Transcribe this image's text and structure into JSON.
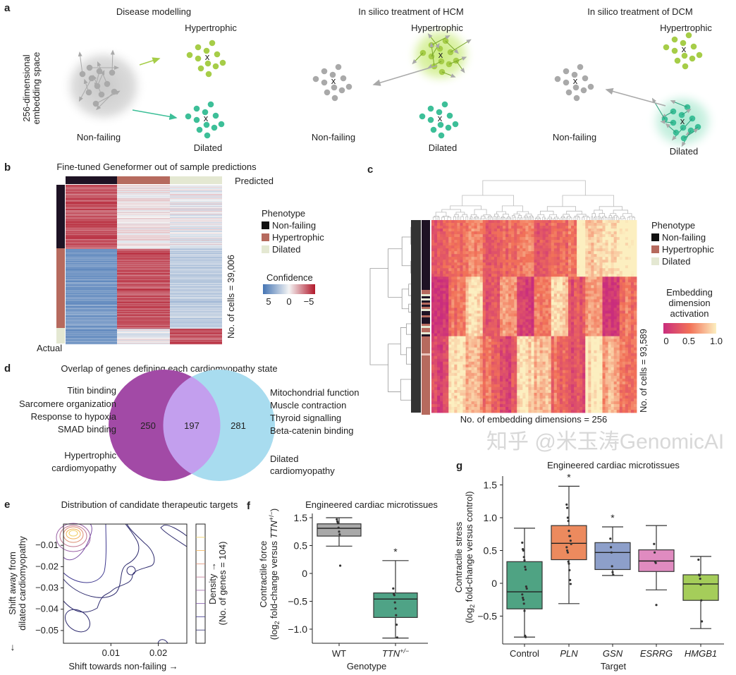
{
  "panel_labels": {
    "a": "a",
    "b": "b",
    "c": "c",
    "d": "d",
    "e": "e",
    "f": "f",
    "g": "g"
  },
  "a": {
    "titles": [
      "Disease modelling",
      "In silico treatment of HCM",
      "In silico treatment of DCM"
    ],
    "axis_label": [
      "256-dimensional",
      "embedding space"
    ],
    "hypertrophic": "Hypertrophic",
    "dilated": "Dilated",
    "non_failing": "Non-failing",
    "centroid_marker": "x",
    "colors": {
      "non_failing": "#a9a9a9",
      "hypertrophic": "#a6cd48",
      "dilated": "#3dbf98"
    }
  },
  "b": {
    "title": "Fine-tuned Geneformer out of sample predictions",
    "predicted": "Predicted",
    "actual": "Actual",
    "cells_label": "No. of cells = 39,006",
    "legend_title": "Phenotype",
    "legend": [
      "Non-failing",
      "Hypertrophic",
      "Dilated"
    ],
    "confidence_title": "Confidence",
    "confidence_ticks": [
      "5",
      "0",
      "−5"
    ],
    "colors": {
      "non_failing": "#1e1224",
      "hypertrophic": "#b66a5e",
      "dilated": "#e4e8d2",
      "high": "#b2182b",
      "low": "#4575b4"
    }
  },
  "c": {
    "legend_title": "Phenotype",
    "legend": [
      "Non-failing",
      "Hypertrophic",
      "Dilated"
    ],
    "cells_label": "No. of cells = 93,589",
    "dims_label": "No. of embedding dimensions = 256",
    "colorbar_title": [
      "Embedding",
      "dimension",
      "activation"
    ],
    "colorbar_ticks": [
      "0",
      "0.5",
      "1.0"
    ],
    "colors": {
      "low": "#c92d7d",
      "mid": "#f27258",
      "high": "#fcefc0"
    }
  },
  "d": {
    "title": "Overlap of genes defining each cardiomyopathy state",
    "left_terms": [
      "Titin binding",
      "Sarcomere organization",
      "Response to hypoxia",
      "SMAD binding"
    ],
    "right_terms": [
      "Mitochondrial function",
      "Muscle contraction",
      "Thyroid signalling",
      "Beta-catenin binding"
    ],
    "left_set": [
      "Hypertrophic",
      "cardiomyopathy"
    ],
    "right_set": [
      "Dilated",
      "cardiomyopathy"
    ],
    "counts": {
      "left_only": "250",
      "overlap": "197",
      "right_only": "281"
    },
    "colors": {
      "left": "#a24aa6",
      "right": "#a8dcef",
      "overlap": "#c39fee"
    }
  },
  "e": {
    "title": "Distribution of candidate therapeutic targets",
    "xlabel": "Shift towards non-failing →",
    "ylabel": [
      "Shift away from",
      "dilated cardiomyopathy"
    ],
    "y_arrow": "↓",
    "density_label": [
      "Density →",
      "(No. of genes = 104)"
    ]
  },
  "f": {
    "title": "Engineered cardiac microtissues",
    "xlabel": "Genotype",
    "ylabel_line1": "Contractile force",
    "ylabel_line2": {
      "pre": "(log",
      "sub": "2",
      "mid": " fold-change versus ",
      "gene": "TTN",
      "sup": "+/−",
      "post": ")"
    }
  },
  "g": {
    "title": "Engineered cardiac microtissues",
    "xlabel": "Target",
    "ylabel_line1": "Contractile stress",
    "ylabel_line2": {
      "pre": "(log",
      "sub": "2",
      "post": " fold-change versus control)"
    }
  },
  "watermark": "知乎 @米玉涛GenomicAI",
  "chart_data": [
    {
      "panel": "e",
      "type": "contour",
      "xticks": [
        "0.01",
        "0.02"
      ],
      "yticks": [
        "−0.01",
        "−0.02",
        "−0.03",
        "−0.04",
        "−0.05"
      ],
      "xlim": [
        0.0,
        0.026
      ],
      "ylim": [
        -0.056,
        0.0
      ],
      "peak": {
        "x": 0.002,
        "y": -0.004
      },
      "n_genes": 104
    },
    {
      "panel": "f",
      "type": "box",
      "categories": [
        {
          "label": "WT",
          "italic": false,
          "sup": ""
        },
        {
          "label": "TTN",
          "italic": true,
          "sup": "+/−"
        }
      ],
      "ytick_labels": [
        "1.5",
        "0.5",
        "0",
        "−0.5",
        "−1.0"
      ],
      "boxes": [
        {
          "whisker_high": 1.0,
          "q3": 0.89,
          "median": 0.81,
          "q1": 0.67,
          "whisker_low": 0.49,
          "points": [
            0.97,
            0.93,
            0.9,
            0.82,
            0.75,
            0.7,
            0.14
          ],
          "color": "#a9a9a9",
          "significant": false
        },
        {
          "whisker_high": 0.23,
          "q3": -0.35,
          "median": -0.46,
          "q1": -0.79,
          "whisker_low": -1.16,
          "points": [
            -0.27,
            -0.37,
            -0.39,
            -0.52,
            -0.63,
            -0.75,
            -0.92,
            -1.15
          ],
          "color": "#4fa386",
          "significant": true
        }
      ],
      "significance_marker": "*"
    },
    {
      "panel": "g",
      "type": "box",
      "categories": [
        "Control",
        "PLN",
        "GSN",
        "ESRRG",
        "HMGB1"
      ],
      "italic": [
        false,
        true,
        true,
        true,
        true
      ],
      "yticks": [
        1.5,
        1.0,
        0.5,
        0,
        -0.5
      ],
      "ytick_labels": [
        "1.5",
        "1.0",
        "0.5",
        "0",
        "−0.5"
      ],
      "ylim": [
        -0.85,
        1.75
      ],
      "boxes": [
        {
          "whisker_high": 0.84,
          "q3": 0.33,
          "median": -0.13,
          "q1": -0.39,
          "whisker_low": -0.82,
          "points": [
            0.62,
            0.52,
            0.5,
            0.4,
            0.35,
            0.25,
            0.21,
            -0.05,
            -0.08,
            -0.17,
            -0.22,
            -0.25,
            -0.31,
            -0.42,
            -0.8,
            -0.82
          ],
          "color": "#4fa383",
          "significant": false
        },
        {
          "whisker_high": 1.48,
          "q3": 0.88,
          "median": 0.61,
          "q1": 0.36,
          "whisker_low": -0.31,
          "points": [
            1.2,
            1.15,
            1.0,
            0.95,
            0.8,
            0.72,
            0.72,
            0.65,
            0.6,
            0.55,
            0.5,
            0.47,
            0.33,
            0.3,
            0.2,
            0.05,
            -0.01
          ],
          "color": "#ec8a5e",
          "significant": true
        },
        {
          "whisker_high": 0.86,
          "q3": 0.62,
          "median": 0.47,
          "q1": 0.21,
          "whisker_low": 0.12,
          "points": [
            0.68,
            0.55,
            0.47,
            0.26,
            0.17,
            0.13
          ],
          "color": "#8d9fca",
          "significant": true
        },
        {
          "whisker_high": 0.88,
          "q3": 0.51,
          "median": 0.34,
          "q1": 0.18,
          "whisker_low": -0.1,
          "points": [
            0.6,
            0.47,
            0.33,
            0.31,
            -0.33
          ],
          "color": "#e08bc0",
          "significant": false
        },
        {
          "whisker_high": 0.41,
          "q3": 0.13,
          "median": -0.01,
          "q1": -0.26,
          "whisker_low": -0.69,
          "points": [
            0.36,
            0.13,
            0.12,
            0.07,
            -0.02,
            -0.26,
            -0.58
          ],
          "color": "#a5cd5a",
          "significant": false
        }
      ],
      "significance_marker": "*"
    }
  ]
}
